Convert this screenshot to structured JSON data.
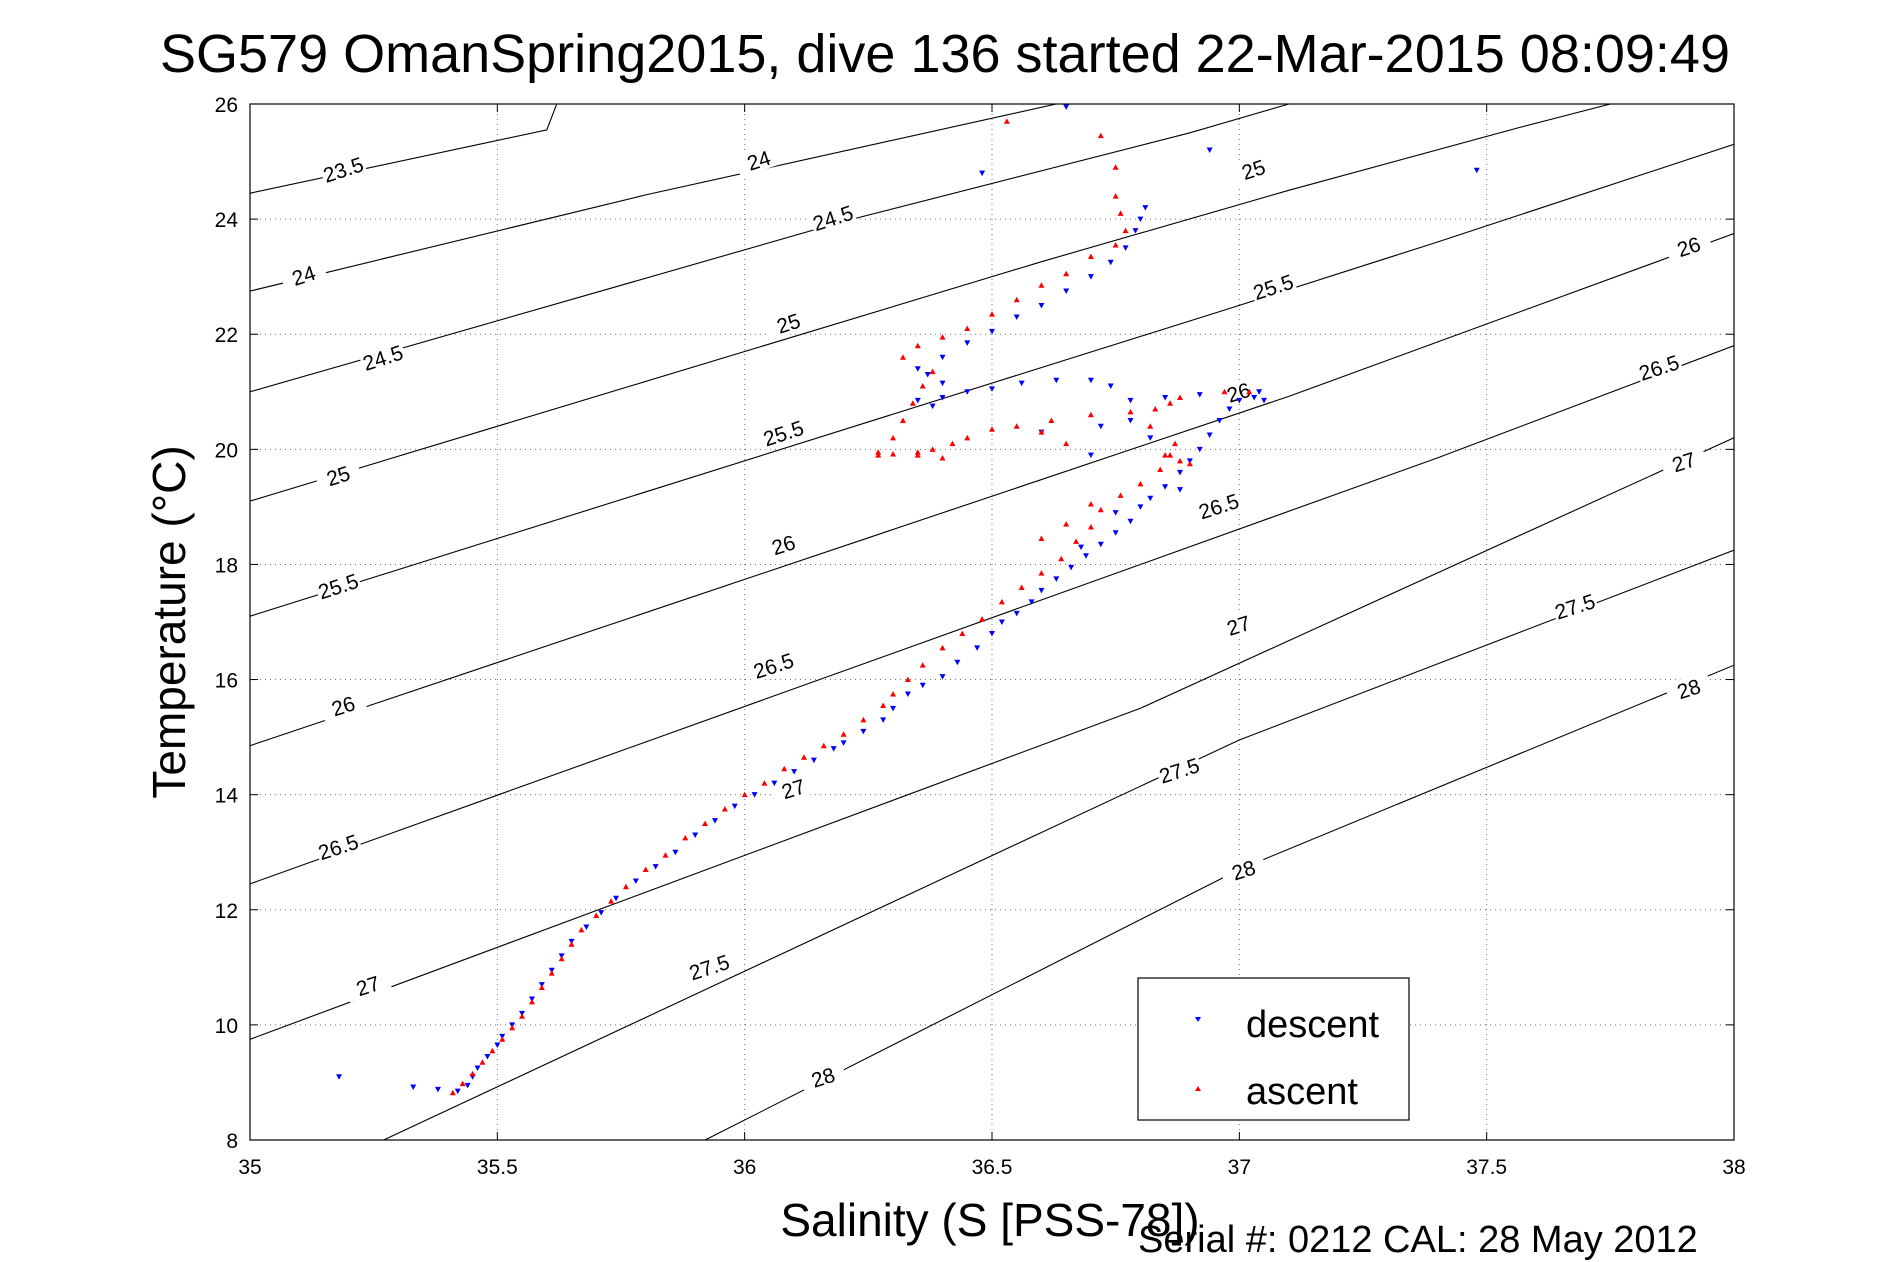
{
  "chart_data": {
    "type": "scatter",
    "title": "SG579 OmanSpring2015, dive 136 started 22-Mar-2015 08:09:49",
    "xlabel": "Salinity (S [PSS-78])",
    "ylabel": "Temperature (°C)",
    "footer": "Serial #: 0212  CAL: 28 May 2012",
    "xlim": [
      35,
      38
    ],
    "ylim": [
      8,
      26
    ],
    "x_ticks": [
      "35",
      "35.5",
      "36",
      "36.5",
      "37",
      "37.5",
      "38"
    ],
    "y_ticks": [
      "8",
      "10",
      "12",
      "14",
      "16",
      "18",
      "20",
      "22",
      "24",
      "26"
    ],
    "grid": true,
    "legend_position": "bottom-right",
    "density_contours": {
      "levels": [
        "23.5",
        "24",
        "24.5",
        "25",
        "25.5",
        "26",
        "26.5",
        "27",
        "27.5",
        "28"
      ],
      "lines": [
        {
          "level": 23.5,
          "points": [
            [
              35,
              24.45
            ],
            [
              35.6,
              25.55
            ],
            [
              35.62,
              26
            ]
          ]
        },
        {
          "level": 24,
          "points": [
            [
              35,
              22.75
            ],
            [
              35.8,
              24.42
            ],
            [
              36.63,
              26
            ]
          ]
        },
        {
          "level": 24.5,
          "points": [
            [
              35,
              21
            ],
            [
              36.2,
              23.96
            ],
            [
              36.9,
              25.5
            ],
            [
              37.1,
              26
            ]
          ]
        },
        {
          "level": 25,
          "points": [
            [
              35,
              19.1
            ],
            [
              36.6,
              23.26
            ],
            [
              37.1,
              24.5
            ],
            [
              37.57,
              25.6
            ],
            [
              37.75,
              26
            ]
          ]
        },
        {
          "level": 25.5,
          "points": [
            [
              35,
              17.1
            ],
            [
              37,
              22.5
            ],
            [
              37.4,
              23.6
            ],
            [
              38,
              25.3
            ]
          ]
        },
        {
          "level": 26,
          "points": [
            [
              35,
              14.85
            ],
            [
              37.1,
              20.92
            ],
            [
              38,
              23.75
            ]
          ]
        },
        {
          "level": 26.5,
          "points": [
            [
              35,
              12.45
            ],
            [
              37.4,
              19.85
            ],
            [
              38,
              21.8
            ]
          ]
        },
        {
          "level": 27,
          "points": [
            [
              35,
              9.75
            ],
            [
              36.8,
              15.5
            ],
            [
              38,
              20.2
            ]
          ]
        },
        {
          "level": 27.5,
          "points": [
            [
              35.27,
              8
            ],
            [
              37,
              14.95
            ],
            [
              38,
              18.25
            ]
          ]
        },
        {
          "level": 28,
          "points": [
            [
              35.92,
              8
            ],
            [
              37,
              12.7
            ],
            [
              38,
              16.25
            ]
          ]
        }
      ],
      "labels": [
        {
          "text": "23.5",
          "s": 35.19,
          "t": 24.82
        },
        {
          "text": "24",
          "s": 36.03,
          "t": 24.98
        },
        {
          "text": "24.5",
          "s": 36.18,
          "t": 23.98
        },
        {
          "text": "25",
          "s": 37.03,
          "t": 24.82
        },
        {
          "text": "24",
          "s": 35.11,
          "t": 22.98
        },
        {
          "text": "25",
          "s": 36.09,
          "t": 22.15
        },
        {
          "text": "25.5",
          "s": 37.07,
          "t": 22.78
        },
        {
          "text": "26",
          "s": 37.91,
          "t": 23.48
        },
        {
          "text": "24.5",
          "s": 35.27,
          "t": 21.55
        },
        {
          "text": "26",
          "s": 37.0,
          "t": 20.95
        },
        {
          "text": "26.5",
          "s": 37.85,
          "t": 21.38
        },
        {
          "text": "25.5",
          "s": 36.08,
          "t": 20.24
        },
        {
          "text": "25",
          "s": 35.18,
          "t": 19.5
        },
        {
          "text": "27",
          "s": 37.9,
          "t": 19.74
        },
        {
          "text": "26.5",
          "s": 36.96,
          "t": 18.97
        },
        {
          "text": "26",
          "s": 36.08,
          "t": 18.3
        },
        {
          "text": "25.5",
          "s": 35.18,
          "t": 17.58
        },
        {
          "text": "27.5",
          "s": 37.68,
          "t": 17.23
        },
        {
          "text": "27",
          "s": 37.0,
          "t": 16.9
        },
        {
          "text": "26.5",
          "s": 36.06,
          "t": 16.2
        },
        {
          "text": "26",
          "s": 35.19,
          "t": 15.5
        },
        {
          "text": "28",
          "s": 37.91,
          "t": 15.8
        },
        {
          "text": "27",
          "s": 36.1,
          "t": 14.06
        },
        {
          "text": "27.5",
          "s": 36.88,
          "t": 14.38
        },
        {
          "text": "26.5",
          "s": 35.18,
          "t": 13.05
        },
        {
          "text": "28",
          "s": 37.01,
          "t": 12.65
        },
        {
          "text": "27.5",
          "s": 35.93,
          "t": 10.96
        },
        {
          "text": "27",
          "s": 35.24,
          "t": 10.64
        },
        {
          "text": "28",
          "s": 36.16,
          "t": 9.05
        }
      ]
    },
    "series": [
      {
        "name": "descent",
        "color": "#0000ff",
        "marker": "triangle-down",
        "points": [
          [
            35.42,
            8.85
          ],
          [
            35.44,
            8.95
          ],
          [
            35.45,
            9.1
          ],
          [
            35.46,
            9.25
          ],
          [
            35.48,
            9.45
          ],
          [
            35.5,
            9.65
          ],
          [
            35.51,
            9.8
          ],
          [
            35.53,
            10.0
          ],
          [
            35.55,
            10.2
          ],
          [
            35.57,
            10.45
          ],
          [
            35.59,
            10.7
          ],
          [
            35.61,
            10.95
          ],
          [
            35.63,
            11.2
          ],
          [
            35.65,
            11.45
          ],
          [
            35.68,
            11.7
          ],
          [
            35.71,
            11.95
          ],
          [
            35.74,
            12.2
          ],
          [
            35.78,
            12.5
          ],
          [
            35.82,
            12.75
          ],
          [
            35.86,
            13.0
          ],
          [
            35.9,
            13.3
          ],
          [
            35.94,
            13.55
          ],
          [
            35.98,
            13.8
          ],
          [
            36.02,
            14.0
          ],
          [
            36.06,
            14.2
          ],
          [
            36.1,
            14.4
          ],
          [
            36.14,
            14.6
          ],
          [
            36.18,
            14.8
          ],
          [
            36.2,
            14.9
          ],
          [
            36.24,
            15.1
          ],
          [
            36.28,
            15.3
          ],
          [
            36.3,
            15.5
          ],
          [
            36.33,
            15.75
          ],
          [
            36.36,
            15.9
          ],
          [
            36.4,
            16.05
          ],
          [
            36.43,
            16.3
          ],
          [
            36.47,
            16.55
          ],
          [
            36.5,
            16.8
          ],
          [
            36.52,
            17.0
          ],
          [
            36.55,
            17.15
          ],
          [
            36.58,
            17.35
          ],
          [
            36.6,
            17.55
          ],
          [
            36.63,
            17.75
          ],
          [
            36.66,
            17.95
          ],
          [
            36.69,
            18.15
          ],
          [
            36.72,
            18.35
          ],
          [
            36.75,
            18.55
          ],
          [
            36.78,
            18.75
          ],
          [
            36.8,
            19.0
          ],
          [
            36.82,
            19.15
          ],
          [
            36.85,
            19.35
          ],
          [
            36.88,
            19.6
          ],
          [
            36.9,
            19.8
          ],
          [
            36.92,
            20.0
          ],
          [
            36.94,
            20.25
          ],
          [
            36.96,
            20.5
          ],
          [
            36.98,
            20.7
          ],
          [
            37.0,
            20.85
          ],
          [
            37.03,
            20.9
          ],
          [
            37.05,
            20.85
          ],
          [
            37.04,
            21.0
          ],
          [
            36.92,
            20.95
          ],
          [
            36.85,
            20.9
          ],
          [
            36.78,
            20.85
          ],
          [
            36.74,
            21.1
          ],
          [
            36.7,
            21.2
          ],
          [
            36.63,
            21.2
          ],
          [
            36.56,
            21.15
          ],
          [
            36.5,
            21.05
          ],
          [
            36.45,
            21.0
          ],
          [
            36.4,
            20.9
          ],
          [
            36.38,
            20.75
          ],
          [
            36.35,
            20.85
          ],
          [
            36.4,
            21.15
          ],
          [
            36.37,
            21.3
          ],
          [
            36.35,
            21.4
          ],
          [
            36.4,
            21.6
          ],
          [
            36.45,
            21.85
          ],
          [
            36.5,
            22.05
          ],
          [
            36.55,
            22.3
          ],
          [
            36.6,
            22.5
          ],
          [
            36.65,
            22.75
          ],
          [
            36.7,
            23.0
          ],
          [
            36.74,
            23.25
          ],
          [
            36.77,
            23.5
          ],
          [
            36.79,
            23.8
          ],
          [
            36.8,
            24.0
          ],
          [
            36.81,
            24.2
          ],
          [
            35.18,
            9.1
          ],
          [
            35.33,
            8.92
          ],
          [
            35.38,
            8.88
          ],
          [
            36.48,
            24.8
          ],
          [
            36.65,
            25.95
          ],
          [
            36.94,
            25.2
          ],
          [
            37.48,
            24.85
          ],
          [
            36.72,
            20.4
          ],
          [
            36.78,
            20.5
          ],
          [
            36.82,
            20.2
          ],
          [
            36.6,
            20.3
          ],
          [
            36.7,
            19.9
          ],
          [
            36.88,
            19.3
          ],
          [
            36.75,
            18.9
          ],
          [
            36.68,
            18.3
          ]
        ]
      },
      {
        "name": "ascent",
        "color": "#ff0000",
        "marker": "triangle-up",
        "points": [
          [
            35.41,
            8.82
          ],
          [
            35.43,
            8.98
          ],
          [
            35.45,
            9.15
          ],
          [
            35.47,
            9.35
          ],
          [
            35.49,
            9.55
          ],
          [
            35.51,
            9.75
          ],
          [
            35.53,
            9.95
          ],
          [
            35.55,
            10.15
          ],
          [
            35.57,
            10.4
          ],
          [
            35.59,
            10.65
          ],
          [
            35.61,
            10.9
          ],
          [
            35.63,
            11.15
          ],
          [
            35.65,
            11.4
          ],
          [
            35.67,
            11.65
          ],
          [
            35.7,
            11.9
          ],
          [
            35.73,
            12.15
          ],
          [
            35.76,
            12.4
          ],
          [
            35.8,
            12.7
          ],
          [
            35.84,
            12.95
          ],
          [
            35.88,
            13.25
          ],
          [
            35.92,
            13.5
          ],
          [
            35.96,
            13.75
          ],
          [
            36.0,
            14.0
          ],
          [
            36.04,
            14.2
          ],
          [
            36.08,
            14.45
          ],
          [
            36.12,
            14.65
          ],
          [
            36.16,
            14.85
          ],
          [
            36.2,
            15.05
          ],
          [
            36.24,
            15.3
          ],
          [
            36.28,
            15.55
          ],
          [
            36.3,
            15.75
          ],
          [
            36.33,
            16.0
          ],
          [
            36.36,
            16.25
          ],
          [
            36.4,
            16.55
          ],
          [
            36.44,
            16.8
          ],
          [
            36.48,
            17.05
          ],
          [
            36.52,
            17.35
          ],
          [
            36.56,
            17.6
          ],
          [
            36.6,
            17.85
          ],
          [
            36.64,
            18.1
          ],
          [
            36.67,
            18.4
          ],
          [
            36.7,
            18.65
          ],
          [
            36.72,
            18.95
          ],
          [
            36.76,
            19.2
          ],
          [
            36.8,
            19.4
          ],
          [
            36.84,
            19.65
          ],
          [
            36.86,
            19.9
          ],
          [
            36.87,
            20.1
          ],
          [
            36.88,
            19.8
          ],
          [
            36.9,
            19.75
          ],
          [
            36.82,
            20.4
          ],
          [
            36.86,
            20.8
          ],
          [
            36.88,
            20.9
          ],
          [
            36.97,
            21.0
          ],
          [
            37.02,
            21.0
          ],
          [
            36.83,
            20.7
          ],
          [
            36.78,
            20.65
          ],
          [
            36.7,
            20.6
          ],
          [
            36.62,
            20.5
          ],
          [
            36.55,
            20.4
          ],
          [
            36.5,
            20.35
          ],
          [
            36.45,
            20.2
          ],
          [
            36.42,
            20.1
          ],
          [
            36.38,
            20.0
          ],
          [
            36.35,
            19.95
          ],
          [
            36.3,
            19.92
          ],
          [
            36.27,
            19.9
          ],
          [
            36.3,
            20.2
          ],
          [
            36.32,
            20.5
          ],
          [
            36.34,
            20.8
          ],
          [
            36.36,
            21.1
          ],
          [
            36.38,
            21.35
          ],
          [
            36.32,
            21.6
          ],
          [
            36.35,
            21.8
          ],
          [
            36.4,
            21.95
          ],
          [
            36.45,
            22.1
          ],
          [
            36.5,
            22.35
          ],
          [
            36.55,
            22.6
          ],
          [
            36.6,
            22.85
          ],
          [
            36.65,
            23.05
          ],
          [
            36.7,
            23.35
          ],
          [
            36.75,
            23.55
          ],
          [
            36.77,
            23.8
          ],
          [
            36.76,
            24.1
          ],
          [
            36.75,
            24.4
          ],
          [
            36.75,
            24.9
          ],
          [
            36.53,
            25.7
          ],
          [
            36.72,
            25.45
          ],
          [
            36.27,
            19.95
          ],
          [
            36.35,
            19.9
          ],
          [
            36.4,
            19.85
          ],
          [
            36.6,
            20.3
          ],
          [
            36.65,
            20.1
          ],
          [
            36.85,
            19.9
          ],
          [
            36.7,
            19.05
          ],
          [
            36.65,
            18.7
          ],
          [
            36.6,
            18.45
          ]
        ]
      }
    ]
  },
  "legend": {
    "items": [
      {
        "label": "descent",
        "color": "#0000ff"
      },
      {
        "label": "ascent",
        "color": "#ff0000"
      }
    ]
  }
}
